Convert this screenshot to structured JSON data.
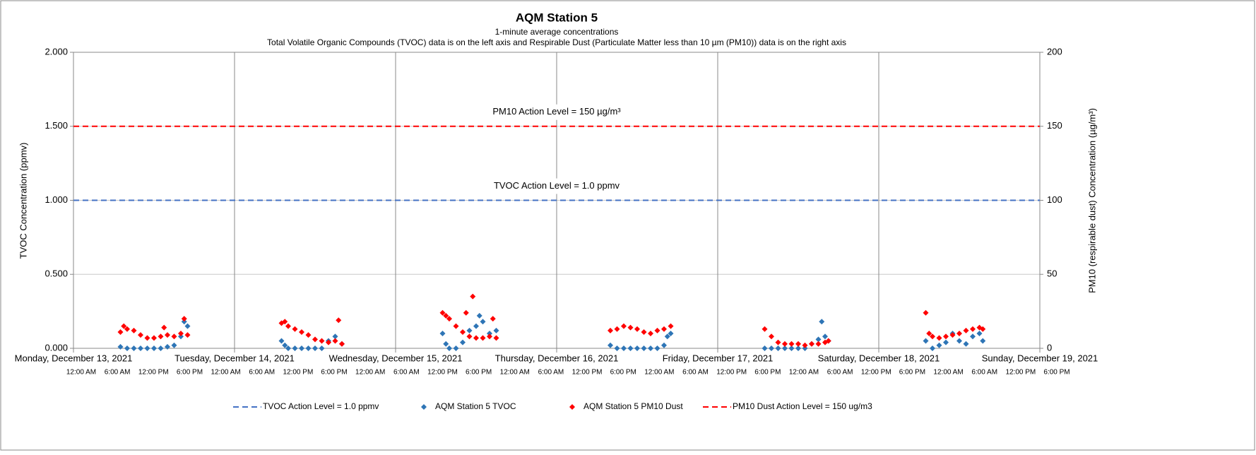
{
  "chart_data": {
    "type": "scatter",
    "title": "AQM Station 5",
    "subtitle": [
      "1-minute average concentrations",
      "Total Volatile Organic Compounds (TVOC) data is on the left axis and Respirable Dust (Particulate Matter less than 10 µm (PM10)) data is on the right axis"
    ],
    "ylabel": "TVOC Concentration (ppmv)",
    "y2label": "PM10 (respirable dust) Concentration (µg/m³)",
    "xlim": [
      "2021-12-13 00:00",
      "2021-12-19 00:00"
    ],
    "xticks": [
      {
        "value": "2021-12-13 00:00",
        "label": "Monday, December 13, 2021"
      },
      {
        "value": "2021-12-14 00:00",
        "label": "Tuesday, December 14, 2021"
      },
      {
        "value": "2021-12-15 00:00",
        "label": "Wednesday, December 15, 2021"
      },
      {
        "value": "2021-12-16 00:00",
        "label": "Thursday, December 16, 2021"
      },
      {
        "value": "2021-12-17 00:00",
        "label": "Friday, December 17, 2021"
      },
      {
        "value": "2021-12-18 00:00",
        "label": "Saturday, December 18, 2021"
      },
      {
        "value": "2021-12-19 00:00",
        "label": "Sunday, December 19, 2021"
      }
    ],
    "x_time_labels": [
      "12:00 AM",
      "6:00 AM",
      "12:00 PM",
      "6:00 PM",
      "12:00 AM",
      "6:00 AM",
      "12:00 PM",
      "6:00 PM",
      "12:00 AM",
      "6:00 AM",
      "12:00 PM",
      "6:00 PM",
      "12:00 AM",
      "6:00 AM",
      "12:00 PM",
      "6:00 PM",
      "12:00 AM",
      "6:00 AM",
      "12:00 PM",
      "6:00 PM",
      "12:00 AM",
      "6:00 AM",
      "12:00 PM",
      "6:00 PM",
      "12:00 AM",
      "6:00 AM",
      "12:00 PM",
      "6:00 PM"
    ],
    "ylim": [
      0,
      2
    ],
    "yticks": [
      {
        "value": 0,
        "label": "0.000"
      },
      {
        "value": 0.5,
        "label": "0.500"
      },
      {
        "value": 1,
        "label": "1.000"
      },
      {
        "value": 1.5,
        "label": "1.500"
      },
      {
        "value": 2,
        "label": "2.000"
      }
    ],
    "y2lim": [
      0,
      200
    ],
    "y2ticks": [
      0,
      50,
      100,
      150,
      200
    ],
    "grid": true,
    "legend": "bottom",
    "series": [
      {
        "name": "TVOC Action Level = 1.0 ppmv",
        "kind": "line",
        "dashed": true,
        "color": "#4472c4",
        "annotation": "TVOC Action Level = 1.0 ppmv",
        "x": [
          "2021-12-13 00:00",
          "2021-12-19 00:00"
        ],
        "values": [
          1.0,
          1.0
        ]
      },
      {
        "name": "AQM Station 5 TVOC",
        "kind": "scatter",
        "color": "#2e75b6",
        "x": [
          "2021-12-13 07:00",
          "2021-12-13 08:00",
          "2021-12-13 09:00",
          "2021-12-13 10:00",
          "2021-12-13 11:00",
          "2021-12-13 12:00",
          "2021-12-13 13:00",
          "2021-12-13 14:00",
          "2021-12-13 15:00",
          "2021-12-13 16:00",
          "2021-12-13 16:30",
          "2021-12-13 17:00",
          "2021-12-14 07:00",
          "2021-12-14 07:30",
          "2021-12-14 08:00",
          "2021-12-14 09:00",
          "2021-12-14 10:00",
          "2021-12-14 11:00",
          "2021-12-14 12:00",
          "2021-12-14 13:00",
          "2021-12-14 14:00",
          "2021-12-14 15:00",
          "2021-12-14 16:00",
          "2021-12-15 07:00",
          "2021-12-15 07:30",
          "2021-12-15 08:00",
          "2021-12-15 09:00",
          "2021-12-15 10:00",
          "2021-12-15 11:00",
          "2021-12-15 12:00",
          "2021-12-15 12:30",
          "2021-12-15 13:00",
          "2021-12-15 14:00",
          "2021-12-15 15:00",
          "2021-12-16 08:00",
          "2021-12-16 09:00",
          "2021-12-16 10:00",
          "2021-12-16 11:00",
          "2021-12-16 12:00",
          "2021-12-16 13:00",
          "2021-12-16 14:00",
          "2021-12-16 15:00",
          "2021-12-16 16:00",
          "2021-12-16 16:30",
          "2021-12-16 17:00",
          "2021-12-17 07:00",
          "2021-12-17 08:00",
          "2021-12-17 09:00",
          "2021-12-17 10:00",
          "2021-12-17 11:00",
          "2021-12-17 12:00",
          "2021-12-17 13:00",
          "2021-12-17 14:00",
          "2021-12-17 15:00",
          "2021-12-17 15:30",
          "2021-12-17 16:00",
          "2021-12-17 16:30",
          "2021-12-18 07:00",
          "2021-12-18 08:00",
          "2021-12-18 09:00",
          "2021-12-18 10:00",
          "2021-12-18 11:00",
          "2021-12-18 12:00",
          "2021-12-18 13:00",
          "2021-12-18 14:00",
          "2021-12-18 15:00",
          "2021-12-18 15:30"
        ],
        "values": [
          0.01,
          0.0,
          0.0,
          0.0,
          0.0,
          0.0,
          0.0,
          0.01,
          0.02,
          0.08,
          0.18,
          0.15,
          0.05,
          0.02,
          0.0,
          0.0,
          0.0,
          0.0,
          0.0,
          0.0,
          0.05,
          0.08,
          0.03,
          0.1,
          0.03,
          0.0,
          0.0,
          0.04,
          0.12,
          0.15,
          0.22,
          0.18,
          0.1,
          0.12,
          0.02,
          0.0,
          0.0,
          0.0,
          0.0,
          0.0,
          0.0,
          0.0,
          0.02,
          0.08,
          0.1,
          0.0,
          0.0,
          0.0,
          0.0,
          0.0,
          0.0,
          0.0,
          0.03,
          0.06,
          0.18,
          0.08,
          0.05,
          0.05,
          0.0,
          0.02,
          0.04,
          0.1,
          0.05,
          0.03,
          0.08,
          0.1,
          0.05
        ]
      },
      {
        "name": "AQM Station 5 PM10 Dust",
        "kind": "scatter",
        "color": "#ff0000",
        "axis": "y2",
        "x": [
          "2021-12-13 07:00",
          "2021-12-13 07:30",
          "2021-12-13 08:00",
          "2021-12-13 09:00",
          "2021-12-13 10:00",
          "2021-12-13 11:00",
          "2021-12-13 12:00",
          "2021-12-13 13:00",
          "2021-12-13 13:30",
          "2021-12-13 14:00",
          "2021-12-13 15:00",
          "2021-12-13 16:00",
          "2021-12-13 16:30",
          "2021-12-13 17:00",
          "2021-12-14 07:00",
          "2021-12-14 07:30",
          "2021-12-14 08:00",
          "2021-12-14 09:00",
          "2021-12-14 10:00",
          "2021-12-14 11:00",
          "2021-12-14 12:00",
          "2021-12-14 13:00",
          "2021-12-14 14:00",
          "2021-12-14 15:00",
          "2021-12-14 15:30",
          "2021-12-14 16:00",
          "2021-12-15 07:00",
          "2021-12-15 07:30",
          "2021-12-15 08:00",
          "2021-12-15 09:00",
          "2021-12-15 10:00",
          "2021-12-15 10:30",
          "2021-12-15 11:00",
          "2021-12-15 11:30",
          "2021-12-15 12:00",
          "2021-12-15 13:00",
          "2021-12-15 14:00",
          "2021-12-15 14:30",
          "2021-12-15 15:00",
          "2021-12-16 08:00",
          "2021-12-16 09:00",
          "2021-12-16 10:00",
          "2021-12-16 11:00",
          "2021-12-16 12:00",
          "2021-12-16 13:00",
          "2021-12-16 14:00",
          "2021-12-16 15:00",
          "2021-12-16 16:00",
          "2021-12-16 17:00",
          "2021-12-17 07:00",
          "2021-12-17 08:00",
          "2021-12-17 09:00",
          "2021-12-17 10:00",
          "2021-12-17 11:00",
          "2021-12-17 12:00",
          "2021-12-17 13:00",
          "2021-12-17 14:00",
          "2021-12-17 15:00",
          "2021-12-17 16:00",
          "2021-12-17 16:30",
          "2021-12-18 07:00",
          "2021-12-18 07:30",
          "2021-12-18 08:00",
          "2021-12-18 09:00",
          "2021-12-18 10:00",
          "2021-12-18 11:00",
          "2021-12-18 12:00",
          "2021-12-18 13:00",
          "2021-12-18 14:00",
          "2021-12-18 15:00",
          "2021-12-18 15:30"
        ],
        "values": [
          11,
          15,
          13,
          12,
          9,
          7,
          7,
          8,
          14,
          9,
          8,
          10,
          20,
          9,
          17,
          18,
          15,
          13,
          11,
          9,
          6,
          5,
          4,
          5,
          19,
          3,
          24,
          22,
          20,
          15,
          11,
          24,
          8,
          35,
          7,
          7,
          8,
          20,
          7,
          12,
          13,
          15,
          14,
          13,
          11,
          10,
          12,
          13,
          15,
          13,
          8,
          4,
          3,
          3,
          3,
          2,
          3,
          3,
          4,
          5,
          24,
          10,
          8,
          7,
          8,
          9,
          10,
          12,
          13,
          14,
          13
        ]
      },
      {
        "name": "PM10 Dust Action Level = 150 ug/m3",
        "kind": "line",
        "dashed": true,
        "color": "#ff0000",
        "axis": "y2",
        "annotation": "PM10 Action Level = 150 µg/m³",
        "x": [
          "2021-12-13 00:00",
          "2021-12-19 00:00"
        ],
        "values": [
          150,
          150
        ]
      }
    ]
  }
}
